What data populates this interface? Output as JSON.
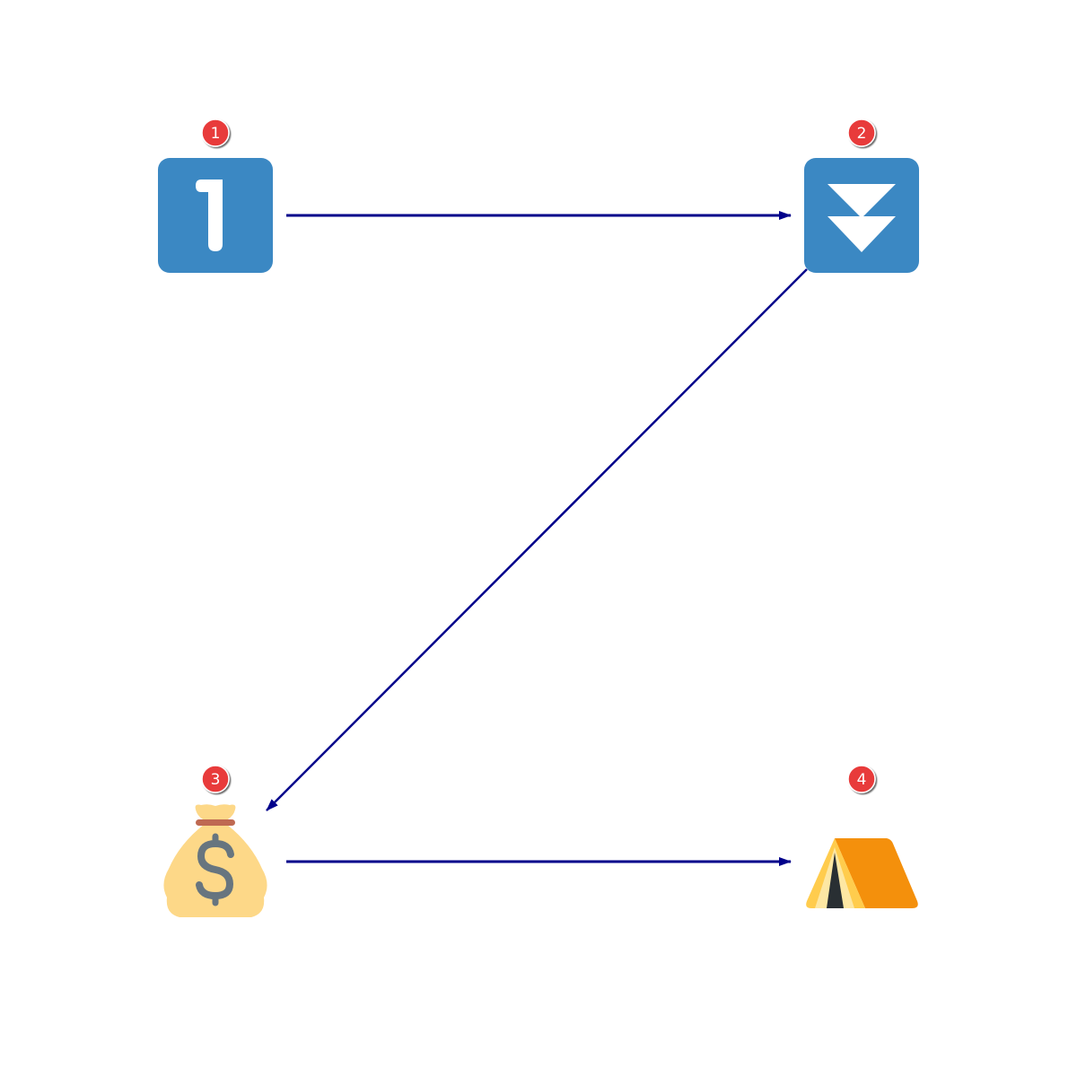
{
  "diagram": {
    "nodes": [
      {
        "id": "1",
        "badge": "1",
        "icon": "keycap-one-icon"
      },
      {
        "id": "2",
        "badge": "2",
        "icon": "fast-down-button-icon"
      },
      {
        "id": "3",
        "badge": "3",
        "icon": "money-bag-icon"
      },
      {
        "id": "4",
        "badge": "4",
        "icon": "tent-icon"
      }
    ],
    "edges": [
      {
        "from": "1",
        "to": "2"
      },
      {
        "from": "2",
        "to": "3"
      },
      {
        "from": "3",
        "to": "4"
      }
    ],
    "colors": {
      "arrow": "#00008b",
      "badge": "#e83a3a",
      "keycap": "#3b88c3",
      "money_bag": "#fdd888",
      "money_bag_tie": "#bf6952",
      "dollar_sign": "#67757f",
      "tent_main": "#f4900c",
      "tent_side": "#ffcc4d",
      "tent_door": "#292f33"
    }
  }
}
